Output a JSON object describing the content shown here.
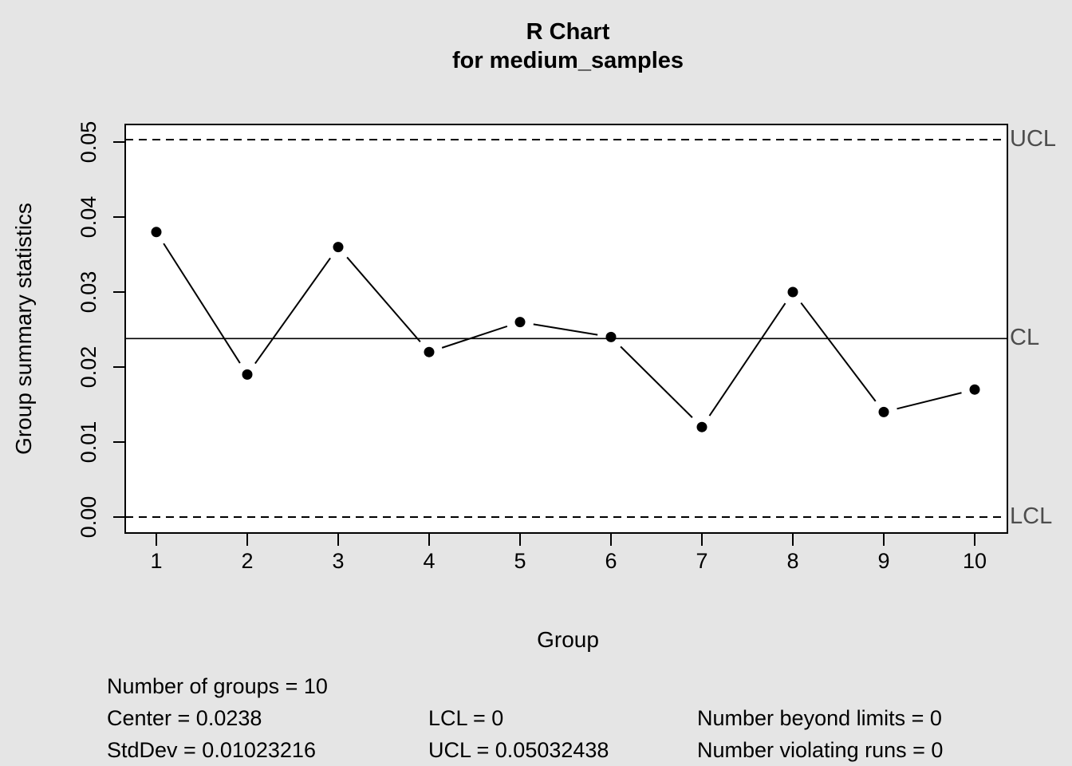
{
  "title": {
    "line1": "R Chart",
    "line2": "for medium_samples"
  },
  "chart_data": {
    "type": "line",
    "title": "R Chart for medium_samples",
    "xlabel": "Group",
    "ylabel": "Group summary statistics",
    "x": [
      1,
      2,
      3,
      4,
      5,
      6,
      7,
      8,
      9,
      10
    ],
    "values": [
      0.038,
      0.019,
      0.036,
      0.022,
      0.026,
      0.024,
      0.012,
      0.03,
      0.014,
      0.017
    ],
    "center": 0.0238,
    "limits": {
      "lcl": 0,
      "ucl": 0.05032438
    },
    "limit_labels": {
      "ucl": "UCL",
      "cl": "CL",
      "lcl": "LCL"
    },
    "x_ticks": [
      "1",
      "2",
      "3",
      "4",
      "5",
      "6",
      "7",
      "8",
      "9",
      "10"
    ],
    "y_tick_values": [
      0,
      0.01,
      0.02,
      0.03,
      0.04,
      0.05
    ],
    "y_tick_labels": [
      "0.00",
      "0.01",
      "0.02",
      "0.03",
      "0.04",
      "0.05"
    ],
    "ylim": [
      -0.002,
      0.0523
    ],
    "grid": false,
    "legend": "none",
    "marker": "filled-circle",
    "line_style": {
      "center": "solid",
      "limits": "dashed"
    }
  },
  "stats": {
    "col1": [
      "Number of groups = 10",
      "Center = 0.0238",
      "StdDev = 0.01023216"
    ],
    "col2": [
      "LCL = 0",
      "UCL = 0.05032438"
    ],
    "col3": [
      "Number beyond limits = 0",
      "Number violating runs = 0"
    ]
  },
  "colors": {
    "background": "#E5E5E5",
    "plot_background": "#FFFFFF",
    "line": "#000000",
    "limit_label_text": "#4D4D4D"
  }
}
